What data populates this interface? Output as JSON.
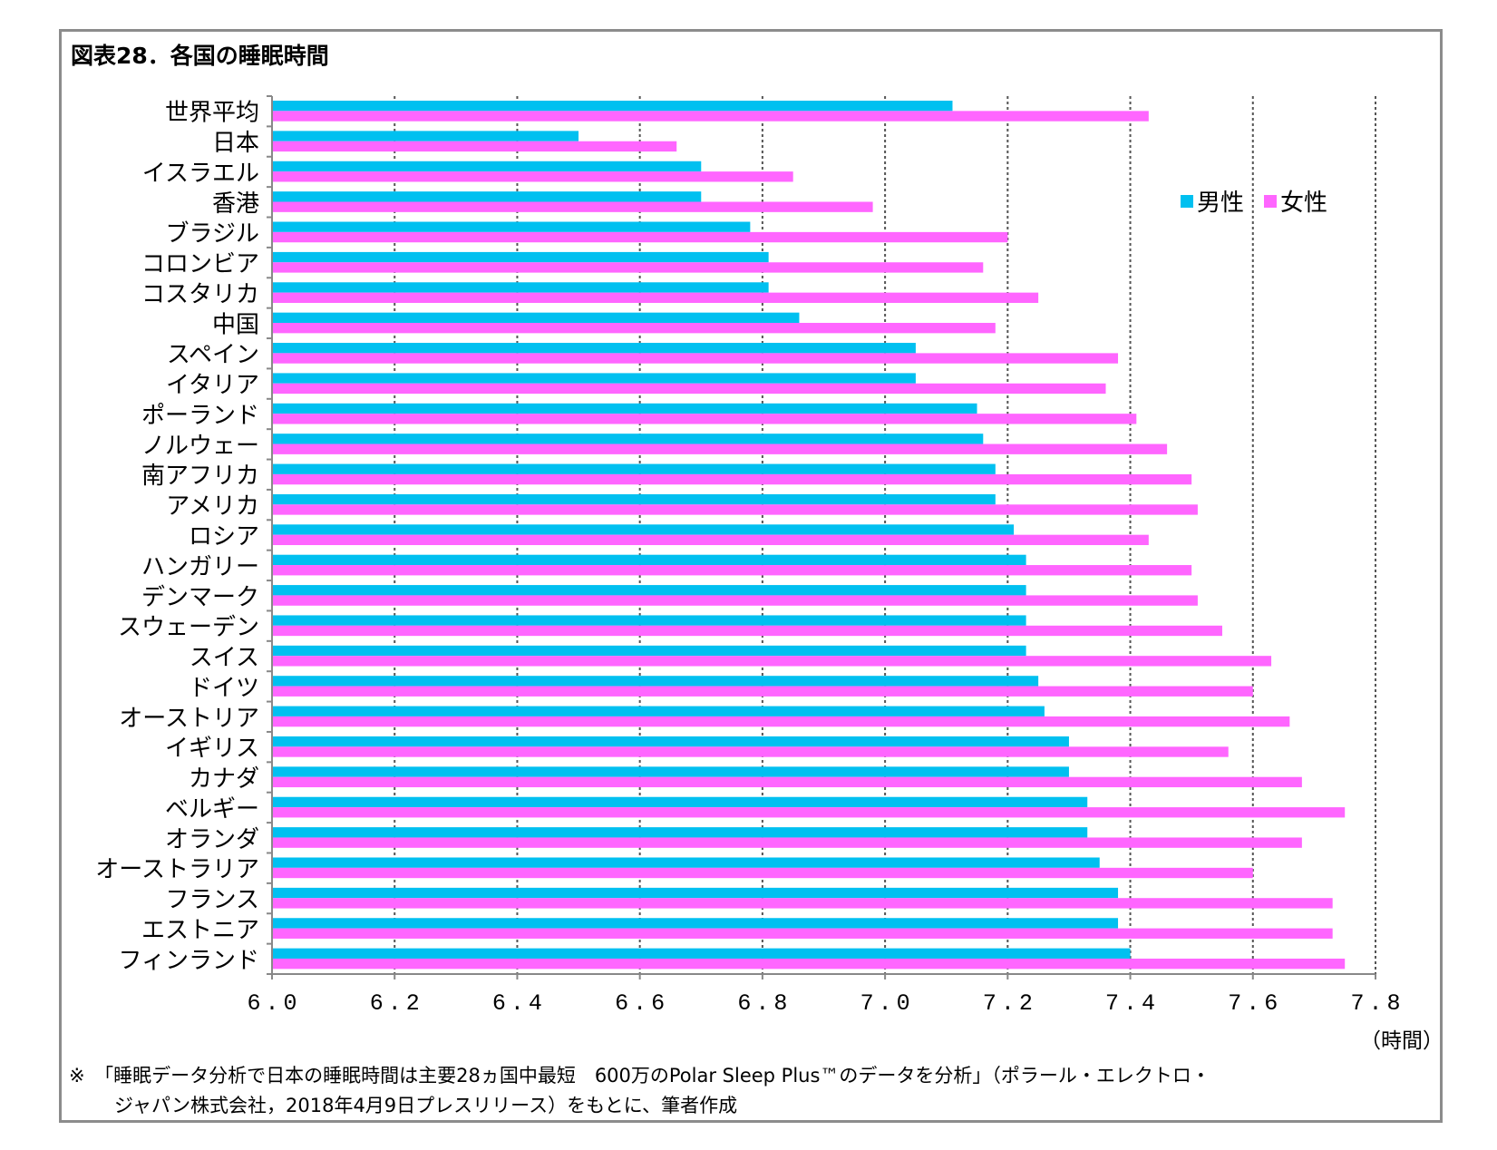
{
  "title": "図表28．各国の睡眠時間",
  "note_line1": "※　「睡眠データ分析で日本の睡眠時間は主要28ヵ国中最短　600万のPolar Sleep Plus™のデータを分析」（ポラール・エレクトロ・",
  "note_line2": "ジャパン株式会社，2018年4月9日プレスリリース）をもとに、筆者作成",
  "chart_data": {
    "type": "bar",
    "orientation": "horizontal",
    "title": "図表28．各国の睡眠時間",
    "xlabel": "（時間）",
    "xlim": [
      6.0,
      7.8
    ],
    "xticks": [
      "6.0",
      "6.2",
      "6.4",
      "6.6",
      "6.8",
      "7.0",
      "7.2",
      "7.4",
      "7.6",
      "7.8"
    ],
    "grid": "vertical dashed",
    "legend_position": "top-right",
    "categories": [
      "世界平均",
      "日本",
      "イスラエル",
      "香港",
      "ブラジル",
      "コロンビア",
      "コスタリカ",
      "中国",
      "スペイン",
      "イタリア",
      "ポーランド",
      "ノルウェー",
      "南アフリカ",
      "アメリカ",
      "ロシア",
      "ハンガリー",
      "デンマーク",
      "スウェーデン",
      "スイス",
      "ドイツ",
      "オーストリア",
      "イギリス",
      "カナダ",
      "ベルギー",
      "オランダ",
      "オーストラリア",
      "フランス",
      "エストニア",
      "フィンランド"
    ],
    "series": [
      {
        "name": "男性",
        "color": "#00C0F0",
        "values": [
          7.11,
          6.5,
          6.7,
          6.7,
          6.78,
          6.81,
          6.81,
          6.86,
          7.05,
          7.05,
          7.15,
          7.16,
          7.18,
          7.18,
          7.21,
          7.23,
          7.23,
          7.23,
          7.23,
          7.25,
          7.26,
          7.3,
          7.3,
          7.33,
          7.33,
          7.35,
          7.38,
          7.38,
          7.4
        ]
      },
      {
        "name": "女性",
        "color": "#FF66FF",
        "values": [
          7.43,
          6.66,
          6.85,
          6.98,
          7.2,
          7.16,
          7.25,
          7.18,
          7.38,
          7.36,
          7.41,
          7.46,
          7.5,
          7.51,
          7.43,
          7.5,
          7.51,
          7.55,
          7.63,
          7.6,
          7.66,
          7.56,
          7.68,
          7.75,
          7.68,
          7.6,
          7.73,
          7.73,
          7.75
        ]
      }
    ]
  }
}
